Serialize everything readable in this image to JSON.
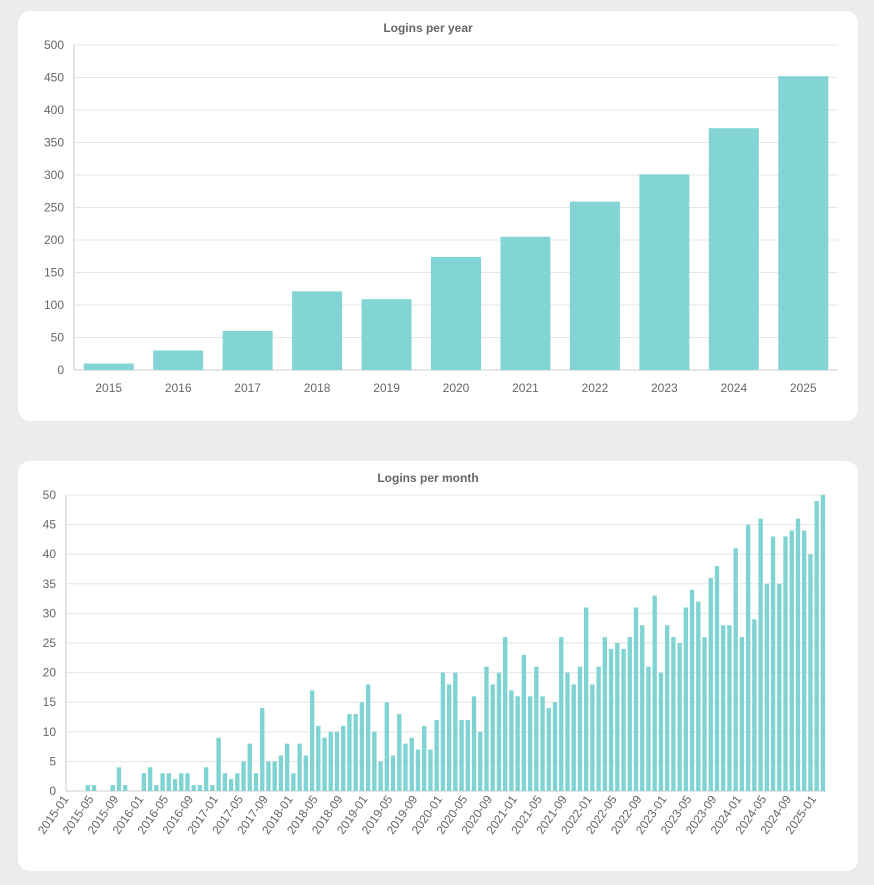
{
  "chart_data": [
    {
      "type": "bar",
      "title": "Logins per year",
      "xlabel": "",
      "ylabel": "",
      "ylim": [
        0,
        500
      ],
      "yticks": [
        "0",
        "50",
        "100",
        "150",
        "200",
        "250",
        "300",
        "350",
        "400",
        "450",
        "500"
      ],
      "grid": true,
      "color": "#7fd4d3",
      "categories": [
        "2015",
        "2016",
        "2017",
        "2018",
        "2019",
        "2020",
        "2021",
        "2022",
        "2023",
        "2024",
        "2025"
      ],
      "values": [
        10,
        30,
        60,
        121,
        109,
        174,
        205,
        259,
        301,
        372,
        452
      ]
    },
    {
      "type": "bar",
      "title": "Logins per month",
      "xlabel": "",
      "ylabel": "",
      "ylim": [
        0,
        50
      ],
      "yticks": [
        "0",
        "5",
        "10",
        "15",
        "20",
        "25",
        "30",
        "35",
        "40",
        "45",
        "50"
      ],
      "grid": true,
      "color": "#7fd4d3",
      "x_tick_labels": [
        "2015-01",
        "2015-05",
        "2015-09",
        "2016-01",
        "2016-05",
        "2016-09",
        "2017-01",
        "2017-05",
        "2017-09",
        "2018-01",
        "2018-05",
        "2018-09",
        "2019-01",
        "2019-05",
        "2019-09",
        "2020-01",
        "2020-05",
        "2020-09",
        "2021-01",
        "2021-05",
        "2021-09",
        "2022-01",
        "2022-05",
        "2022-09",
        "2023-01",
        "2023-05",
        "2023-09",
        "2024-01",
        "2024-05",
        "2024-09",
        "2025-01"
      ],
      "values": [
        0,
        0,
        0,
        1,
        1,
        0,
        0,
        1,
        4,
        1,
        0,
        0,
        3,
        4,
        1,
        3,
        3,
        2,
        3,
        3,
        1,
        1,
        4,
        1,
        9,
        3,
        2,
        3,
        5,
        8,
        3,
        14,
        5,
        5,
        6,
        8,
        3,
        8,
        6,
        17,
        11,
        9,
        10,
        10,
        11,
        13,
        13,
        15,
        18,
        10,
        5,
        15,
        6,
        13,
        8,
        9,
        7,
        11,
        7,
        12,
        20,
        18,
        20,
        12,
        12,
        16,
        10,
        21,
        18,
        20,
        26,
        17,
        16,
        23,
        16,
        21,
        16,
        14,
        15,
        26,
        20,
        18,
        21,
        31,
        18,
        21,
        26,
        24,
        25,
        24,
        26,
        31,
        28,
        21,
        33,
        20,
        28,
        26,
        25,
        31,
        34,
        32,
        26,
        36,
        38,
        28,
        28,
        41,
        26,
        45,
        29,
        46,
        35,
        43,
        35,
        43,
        44,
        46,
        44,
        40,
        49,
        50
      ]
    }
  ]
}
